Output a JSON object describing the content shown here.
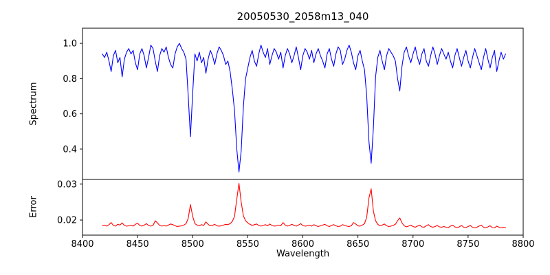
{
  "chart_data": {
    "type": "line",
    "title": "20050530_2058m13_040",
    "xlabel": "Wavelength",
    "grid": false,
    "legend": "none",
    "line_color_top": "#0000ff",
    "line_color_bottom": "#ff0000",
    "xlim": [
      8400,
      8800
    ],
    "xticks": [
      8400,
      8450,
      8500,
      8550,
      8600,
      8650,
      8700,
      8750,
      8800
    ],
    "xtick_labels": [
      "8400",
      "8450",
      "8500",
      "8550",
      "8600",
      "8650",
      "8700",
      "8750",
      "8800"
    ],
    "x_start": 8418,
    "x_step": 2,
    "panels": [
      {
        "ylabel": "Spectrum",
        "ylim": [
          0.228,
          1.086
        ],
        "yticks": [
          1.0,
          0.8,
          0.6,
          0.4
        ],
        "ytick_labels": [
          "1.0",
          "0.8",
          "0.6",
          "0.4"
        ],
        "series": {
          "name": "spectrum",
          "color": "#0000ff",
          "values": [
            0.94,
            0.92,
            0.95,
            0.9,
            0.84,
            0.93,
            0.96,
            0.89,
            0.92,
            0.81,
            0.91,
            0.95,
            0.97,
            0.94,
            0.96,
            0.89,
            0.85,
            0.94,
            0.97,
            0.93,
            0.86,
            0.92,
            0.99,
            0.97,
            0.9,
            0.84,
            0.93,
            0.97,
            0.95,
            0.98,
            0.92,
            0.88,
            0.86,
            0.94,
            0.98,
            1.0,
            0.97,
            0.95,
            0.91,
            0.7,
            0.47,
            0.72,
            0.94,
            0.9,
            0.95,
            0.89,
            0.92,
            0.83,
            0.91,
            0.96,
            0.93,
            0.88,
            0.94,
            0.98,
            0.96,
            0.93,
            0.88,
            0.9,
            0.84,
            0.74,
            0.62,
            0.4,
            0.27,
            0.39,
            0.64,
            0.8,
            0.86,
            0.92,
            0.96,
            0.9,
            0.87,
            0.94,
            0.99,
            0.95,
            0.92,
            0.97,
            0.88,
            0.93,
            0.97,
            0.95,
            0.91,
            0.95,
            0.86,
            0.93,
            0.97,
            0.94,
            0.89,
            0.93,
            0.98,
            0.92,
            0.85,
            0.93,
            0.97,
            0.95,
            0.91,
            0.96,
            0.89,
            0.94,
            0.97,
            0.93,
            0.9,
            0.86,
            0.94,
            0.97,
            0.91,
            0.87,
            0.94,
            0.98,
            0.96,
            0.88,
            0.91,
            0.96,
            0.99,
            0.95,
            0.89,
            0.85,
            0.93,
            0.96,
            0.9,
            0.85,
            0.7,
            0.44,
            0.32,
            0.52,
            0.81,
            0.92,
            0.96,
            0.9,
            0.85,
            0.93,
            0.97,
            0.95,
            0.93,
            0.9,
            0.8,
            0.73,
            0.87,
            0.95,
            0.98,
            0.93,
            0.89,
            0.94,
            0.98,
            0.92,
            0.88,
            0.94,
            0.97,
            0.9,
            0.87,
            0.93,
            0.98,
            0.94,
            0.88,
            0.93,
            0.97,
            0.94,
            0.91,
            0.95,
            0.9,
            0.86,
            0.93,
            0.97,
            0.92,
            0.87,
            0.92,
            0.96,
            0.9,
            0.86,
            0.92,
            0.97,
            0.93,
            0.89,
            0.85,
            0.92,
            0.97,
            0.91,
            0.86,
            0.92,
            0.96,
            0.84,
            0.9,
            0.95,
            0.91,
            0.94
          ]
        }
      },
      {
        "ylabel": "Error",
        "ylim": [
          0.0158,
          0.0313
        ],
        "yticks": [
          0.03,
          0.02
        ],
        "ytick_labels": [
          "0.03",
          "0.02"
        ],
        "series": {
          "name": "error",
          "color": "#ff0000",
          "values": [
            0.0184,
            0.0186,
            0.0183,
            0.0187,
            0.0193,
            0.0185,
            0.0183,
            0.0188,
            0.0186,
            0.0192,
            0.0185,
            0.0183,
            0.0184,
            0.0186,
            0.0183,
            0.0188,
            0.0191,
            0.0185,
            0.0183,
            0.0186,
            0.019,
            0.0185,
            0.0183,
            0.0185,
            0.0198,
            0.0192,
            0.0185,
            0.0183,
            0.0185,
            0.0183,
            0.0186,
            0.0189,
            0.0187,
            0.0184,
            0.0182,
            0.0183,
            0.0184,
            0.0186,
            0.019,
            0.0205,
            0.0243,
            0.021,
            0.019,
            0.0186,
            0.0184,
            0.0187,
            0.0185,
            0.0195,
            0.0188,
            0.0184,
            0.0185,
            0.0188,
            0.0184,
            0.0183,
            0.0184,
            0.0186,
            0.0188,
            0.0187,
            0.019,
            0.0196,
            0.021,
            0.0258,
            0.0302,
            0.025,
            0.0212,
            0.0198,
            0.0192,
            0.0188,
            0.0185,
            0.0187,
            0.0189,
            0.0185,
            0.0183,
            0.0185,
            0.0187,
            0.0184,
            0.0189,
            0.0185,
            0.0183,
            0.0184,
            0.0186,
            0.0184,
            0.0193,
            0.0186,
            0.0183,
            0.0185,
            0.0188,
            0.0185,
            0.0183,
            0.0186,
            0.019,
            0.0185,
            0.0183,
            0.0184,
            0.0186,
            0.0183,
            0.0187,
            0.0184,
            0.0182,
            0.0184,
            0.0186,
            0.0188,
            0.0184,
            0.0182,
            0.0185,
            0.0187,
            0.0184,
            0.0182,
            0.0183,
            0.0187,
            0.0185,
            0.0183,
            0.0182,
            0.0184,
            0.0193,
            0.0189,
            0.0184,
            0.0183,
            0.0186,
            0.019,
            0.0208,
            0.0262,
            0.0287,
            0.0225,
            0.0198,
            0.0188,
            0.0184,
            0.0186,
            0.0189,
            0.0184,
            0.0182,
            0.0183,
            0.0185,
            0.0188,
            0.0198,
            0.0206,
            0.0192,
            0.0184,
            0.0181,
            0.0183,
            0.0186,
            0.0182,
            0.018,
            0.0183,
            0.0186,
            0.0181,
            0.018,
            0.0184,
            0.0187,
            0.0182,
            0.018,
            0.0182,
            0.0185,
            0.0181,
            0.018,
            0.0182,
            0.018,
            0.0179,
            0.0183,
            0.0186,
            0.0181,
            0.0179,
            0.0181,
            0.0185,
            0.018,
            0.0179,
            0.0182,
            0.0185,
            0.018,
            0.0178,
            0.018,
            0.0183,
            0.0186,
            0.018,
            0.0178,
            0.0181,
            0.0184,
            0.0179,
            0.0178,
            0.0183,
            0.018,
            0.0178,
            0.018,
            0.0179
          ]
        }
      }
    ]
  }
}
